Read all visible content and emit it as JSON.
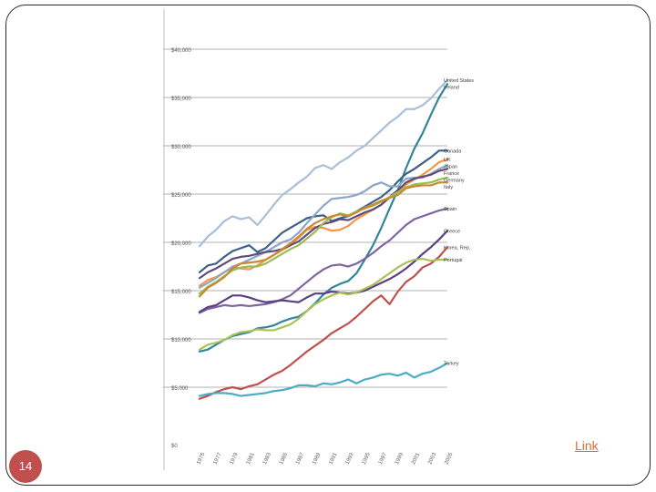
{
  "slide": {
    "number": "14",
    "link_label": "Link"
  },
  "chart_data": {
    "type": "line",
    "title": "",
    "xlabel": "",
    "ylabel": "",
    "ylim": [
      0,
      40000
    ],
    "y_ticks": [
      "$0",
      "$5,000",
      "$10,000",
      "$15,000",
      "$20,000",
      "$25,000",
      "$30,000",
      "$35,000",
      "$40,000"
    ],
    "y_tick_values": [
      0,
      5000,
      10000,
      15000,
      20000,
      25000,
      30000,
      35000,
      40000
    ],
    "x": [
      1975,
      1976,
      1977,
      1978,
      1979,
      1980,
      1981,
      1982,
      1983,
      1984,
      1985,
      1986,
      1987,
      1988,
      1989,
      1990,
      1991,
      1992,
      1993,
      1994,
      1995,
      1996,
      1997,
      1998,
      1999,
      2000,
      2001,
      2002,
      2003,
      2004,
      2005
    ],
    "x_tick_labels": [
      "1975",
      "1977",
      "1979",
      "1981",
      "1983",
      "1985",
      "1987",
      "1989",
      "1991",
      "1993",
      "1995",
      "1997",
      "1999",
      "2001",
      "2003",
      "2005"
    ],
    "x_tick_values": [
      1975,
      1977,
      1979,
      1981,
      1983,
      1985,
      1987,
      1989,
      1991,
      1993,
      1995,
      1997,
      1999,
      2001,
      2003,
      2005
    ],
    "series": [
      {
        "name": "United States",
        "color": "#a9bfd9",
        "values": [
          19600,
          20600,
          21300,
          22200,
          22700,
          22400,
          22600,
          21800,
          22800,
          23900,
          24900,
          25500,
          26200,
          26800,
          27700,
          28000,
          27600,
          28300,
          28800,
          29500,
          30000,
          30800,
          31600,
          32400,
          33000,
          33800,
          33800,
          34200,
          34900,
          35900,
          36800
        ]
      },
      {
        "name": "Ireland",
        "color": "#31859c",
        "values": [
          8700,
          8900,
          9400,
          9900,
          10300,
          10500,
          10700,
          11100,
          11200,
          11400,
          11800,
          12100,
          12300,
          12900,
          13700,
          14600,
          15300,
          15700,
          16000,
          16800,
          18200,
          19700,
          21500,
          23500,
          25400,
          27700,
          29700,
          31300,
          33200,
          35000,
          36400
        ]
      },
      {
        "name": "Canada",
        "color": "#3e5f87",
        "values": [
          16900,
          17600,
          17800,
          18500,
          19100,
          19400,
          19700,
          19000,
          19400,
          20200,
          21000,
          21500,
          22000,
          22500,
          22700,
          22800,
          22200,
          22500,
          22700,
          23200,
          23700,
          24200,
          24700,
          25400,
          26300,
          27100,
          27600,
          28200,
          28800,
          29500,
          29500
        ]
      },
      {
        "name": "UK",
        "color": "#f79646",
        "values": [
          15500,
          16100,
          16400,
          16900,
          17400,
          17300,
          17200,
          17600,
          18200,
          18700,
          19200,
          19700,
          20500,
          21300,
          21600,
          21500,
          21200,
          21300,
          21700,
          22400,
          22900,
          23400,
          23900,
          24600,
          25200,
          26000,
          26500,
          27000,
          27600,
          28300,
          28600
        ]
      },
      {
        "name": "Japan",
        "color": "#8aa6c8",
        "values": [
          15300,
          15800,
          16300,
          16900,
          17500,
          17800,
          18200,
          18600,
          19000,
          19500,
          20000,
          20300,
          21000,
          22000,
          22900,
          23800,
          24500,
          24600,
          24700,
          24900,
          25300,
          25900,
          26200,
          25800,
          25800,
          26600,
          26700,
          26700,
          27100,
          27600,
          28000
        ]
      },
      {
        "name": "France",
        "color": "#604a7b",
        "values": [
          16300,
          16900,
          17300,
          17800,
          18300,
          18500,
          18600,
          18800,
          19000,
          19100,
          19300,
          19700,
          20100,
          20800,
          21500,
          21900,
          22100,
          22400,
          22300,
          22700,
          23100,
          23400,
          23900,
          24700,
          25400,
          26200,
          26600,
          26800,
          27000,
          27400,
          27600
        ]
      },
      {
        "name": "Germany",
        "color": "#9bbb59",
        "values": [
          14700,
          15400,
          15900,
          16500,
          17100,
          17400,
          17500,
          17500,
          17800,
          18300,
          18800,
          19300,
          19700,
          20400,
          21100,
          22000,
          22600,
          23000,
          22800,
          23200,
          23500,
          23800,
          24200,
          24700,
          25200,
          25700,
          26000,
          26100,
          26200,
          26500,
          26700
        ]
      },
      {
        "name": "Italy",
        "color": "#c88a2c",
        "values": [
          14400,
          15300,
          15800,
          16400,
          17300,
          17800,
          17900,
          18000,
          18200,
          18700,
          19300,
          19900,
          20600,
          21400,
          22000,
          22400,
          22700,
          22900,
          22700,
          23100,
          23600,
          23900,
          24300,
          24600,
          24900,
          25600,
          25800,
          25900,
          25900,
          26200,
          26200
        ]
      },
      {
        "name": "Spain",
        "color": "#8064a2",
        "values": [
          12700,
          13100,
          13300,
          13500,
          13400,
          13500,
          13400,
          13500,
          13600,
          13800,
          14100,
          14500,
          15200,
          15900,
          16600,
          17200,
          17600,
          17700,
          17500,
          17800,
          18300,
          18900,
          19600,
          20200,
          21000,
          21800,
          22400,
          22700,
          23000,
          23300,
          23500
        ]
      },
      {
        "name": "Greece",
        "color": "#5b3f82",
        "values": [
          12800,
          13300,
          13500,
          14000,
          14500,
          14500,
          14300,
          14000,
          13800,
          13900,
          14000,
          13900,
          13800,
          14300,
          14700,
          14700,
          14900,
          14800,
          14700,
          14800,
          15000,
          15400,
          15800,
          16200,
          16700,
          17300,
          18000,
          18800,
          19500,
          20300,
          21200
        ]
      },
      {
        "name": "Korea, Rep.",
        "color": "#c0504d",
        "values": [
          3800,
          4100,
          4500,
          4800,
          5000,
          4800,
          5100,
          5300,
          5800,
          6300,
          6700,
          7300,
          8000,
          8700,
          9300,
          9900,
          10600,
          11100,
          11600,
          12300,
          13100,
          13900,
          14500,
          13600,
          14900,
          15900,
          16500,
          17400,
          17800,
          18500,
          19500
        ]
      },
      {
        "name": "Portugal",
        "color": "#a8c256",
        "values": [
          8900,
          9400,
          9600,
          9900,
          10400,
          10700,
          10800,
          11000,
          10900,
          10900,
          11200,
          11500,
          12100,
          12900,
          13600,
          14100,
          14500,
          14800,
          14600,
          14800,
          15200,
          15600,
          16200,
          16800,
          17400,
          17900,
          18200,
          18300,
          18100,
          18200,
          18200
        ]
      },
      {
        "name": "Turkey",
        "color": "#4bacc6",
        "values": [
          4100,
          4300,
          4400,
          4400,
          4300,
          4100,
          4200,
          4300,
          4400,
          4600,
          4700,
          4900,
          5200,
          5200,
          5100,
          5400,
          5300,
          5500,
          5800,
          5400,
          5800,
          6000,
          6300,
          6400,
          6200,
          6500,
          6000,
          6400,
          6600,
          7000,
          7500
        ]
      }
    ],
    "legend_labels": [
      "United States",
      "Ireland",
      "Canada",
      "UK",
      "Japan",
      "France",
      "Germany",
      "Italy",
      "Spain",
      "Greece",
      "Korea, Rep.",
      "Portugal",
      "Turkey"
    ]
  }
}
